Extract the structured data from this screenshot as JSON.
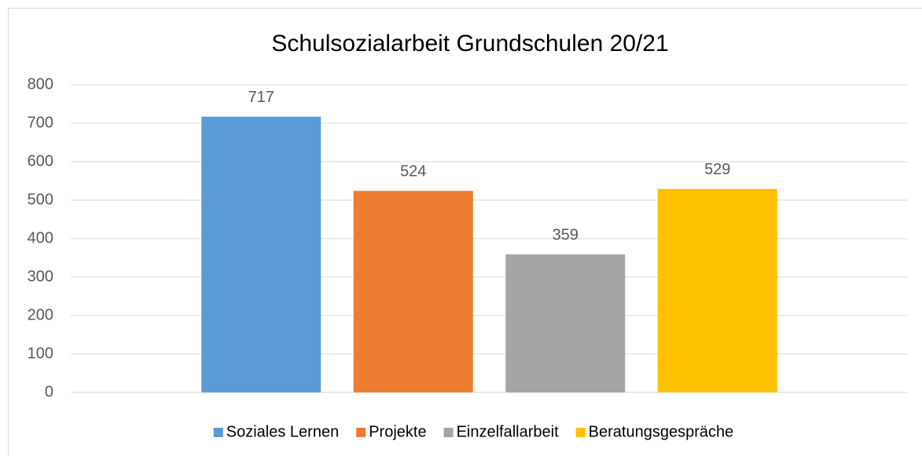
{
  "chart_data": {
    "type": "bar",
    "title": "Schulsozialarbeit Grundschulen 20/21",
    "categories": [
      null
    ],
    "series": [
      {
        "name": "Soziales Lernen",
        "color": "#5b9bd5",
        "values": [
          717
        ]
      },
      {
        "name": "Projekte",
        "color": "#ed7d31",
        "values": [
          524
        ]
      },
      {
        "name": "Einzelfallarbeit",
        "color": "#a5a5a5",
        "values": [
          359
        ]
      },
      {
        "name": "Beratungsgespräche",
        "color": "#ffc000",
        "values": [
          529
        ]
      }
    ],
    "ylim": [
      0,
      800
    ],
    "yticks": [
      0,
      100,
      200,
      300,
      400,
      500,
      600,
      700,
      800
    ],
    "grid": true,
    "legend": "bottom"
  }
}
